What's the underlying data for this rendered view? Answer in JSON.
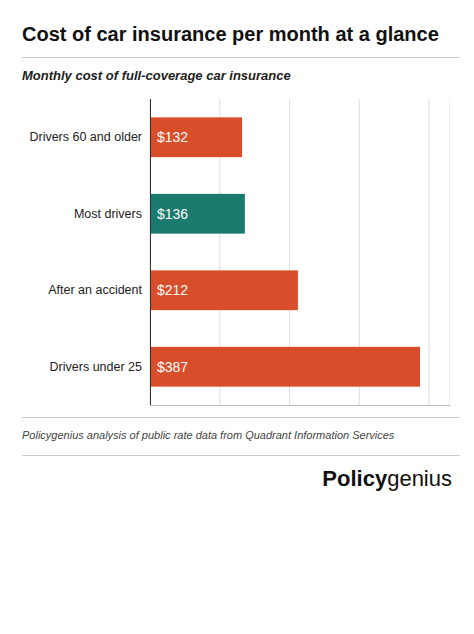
{
  "chart_data": {
    "type": "bar",
    "orientation": "horizontal",
    "title": "Cost of car insurance per month at a glance",
    "subtitle": "Monthly cost of full-coverage car insurance",
    "categories": [
      "Drivers 60 and older",
      "Most drivers",
      "After an accident",
      "Drivers under 25"
    ],
    "values": [
      132,
      136,
      212,
      387
    ],
    "value_labels": [
      "$132",
      "$136",
      "$212",
      "$387"
    ],
    "data_labels": true,
    "colors": [
      "#D94E2A",
      "#1A7A6E",
      "#D94E2A",
      "#D94E2A"
    ],
    "xlim": [
      0,
      430
    ],
    "xticks": [
      0,
      100,
      200,
      300,
      400
    ],
    "grid": true,
    "tick_labels": "y",
    "footnote": "Policygenius analysis of public rate data from Quadrant Information Services",
    "logo": [
      "Policy",
      "genius"
    ]
  }
}
